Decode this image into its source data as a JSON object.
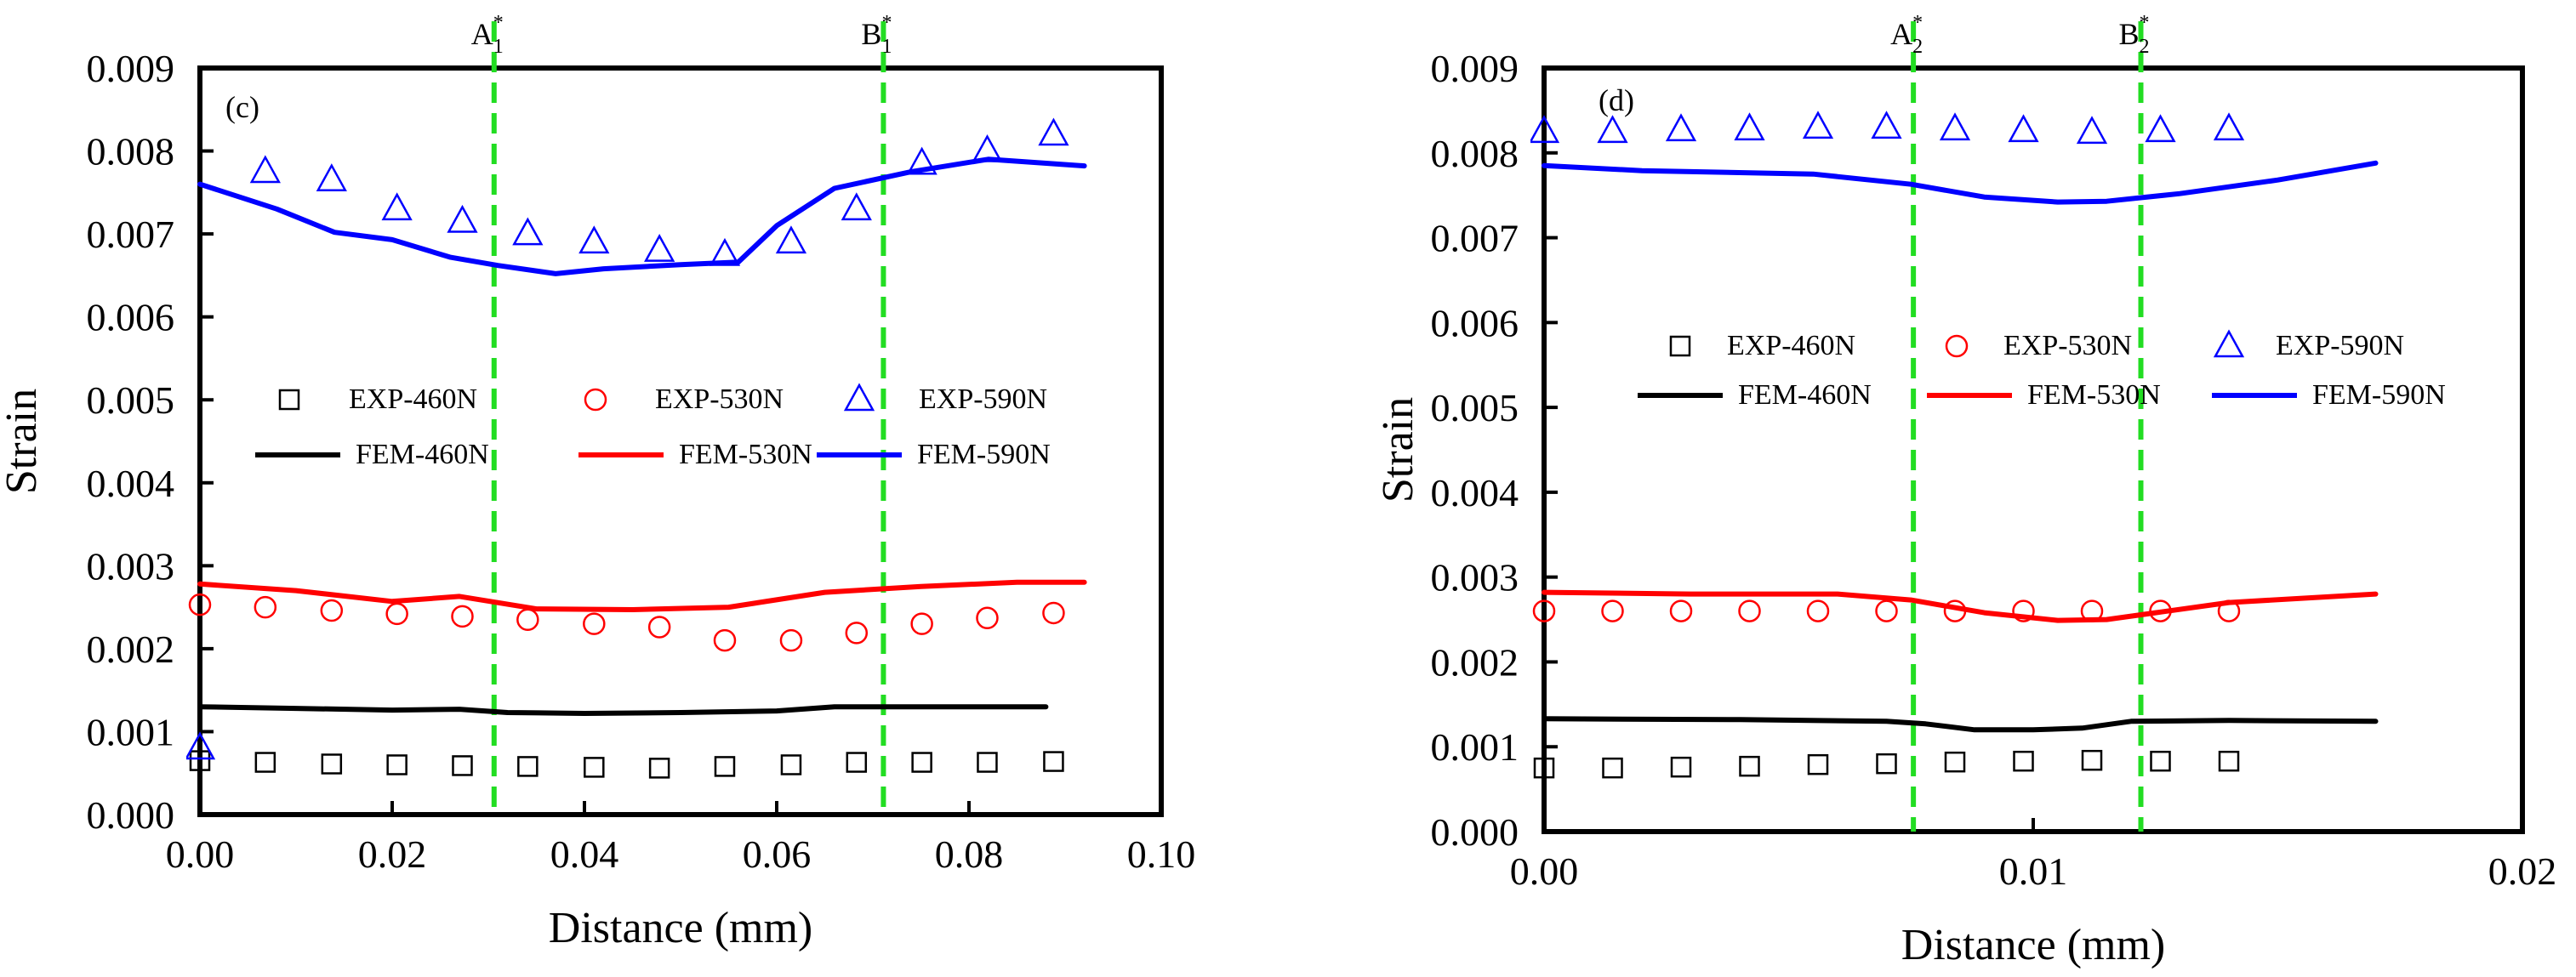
{
  "chart_data": [
    {
      "type": "scatter",
      "panel_label": "(c)",
      "xlabel": "Distance (mm)",
      "ylabel": "Strain",
      "xlim": [
        0,
        0.1
      ],
      "ylim": [
        0,
        0.009
      ],
      "x_ticks": [
        {
          "value": 0,
          "label": "0.00"
        },
        {
          "value": 0.02,
          "label": "0.02"
        },
        {
          "value": 0.04,
          "label": "0.04"
        },
        {
          "value": 0.06,
          "label": "0.06"
        },
        {
          "value": 0.08,
          "label": "0.08"
        },
        {
          "value": 0.1,
          "label": "0.10"
        }
      ],
      "y_ticks": [
        {
          "value": 0,
          "label": "0.000"
        },
        {
          "value": 0.001,
          "label": "0.001"
        },
        {
          "value": 0.002,
          "label": "0.002"
        },
        {
          "value": 0.003,
          "label": "0.003"
        },
        {
          "value": 0.004,
          "label": "0.004"
        },
        {
          "value": 0.005,
          "label": "0.005"
        },
        {
          "value": 0.006,
          "label": "0.006"
        },
        {
          "value": 0.007,
          "label": "0.007"
        },
        {
          "value": 0.008,
          "label": "0.008"
        },
        {
          "value": 0.009,
          "label": "0.009"
        }
      ],
      "vlines": [
        {
          "x": 0.0306,
          "base": "A",
          "sub": "1",
          "sup": "*"
        },
        {
          "x": 0.0711,
          "base": "B",
          "sub": "1",
          "sup": "*"
        }
      ],
      "scatter_series": [
        {
          "name": "EXP-460N",
          "marker": "square",
          "color": "#000000",
          "x": [
            0,
            0.0068,
            0.0137,
            0.0205,
            0.0273,
            0.0341,
            0.041,
            0.0478,
            0.0546,
            0.0615,
            0.0683,
            0.0751,
            0.0819,
            0.0888
          ],
          "y": [
            0.00065,
            0.00063,
            0.00061,
            0.0006,
            0.00059,
            0.00058,
            0.00057,
            0.00056,
            0.00058,
            0.0006,
            0.00063,
            0.00063,
            0.00063,
            0.00064
          ]
        },
        {
          "name": "EXP-530N",
          "marker": "circle",
          "color": "#ff0000",
          "x": [
            0,
            0.0068,
            0.0137,
            0.0205,
            0.0273,
            0.0341,
            0.041,
            0.0478,
            0.0546,
            0.0615,
            0.0683,
            0.0751,
            0.0819,
            0.0888
          ],
          "y": [
            0.00253,
            0.0025,
            0.00246,
            0.00242,
            0.00239,
            0.00235,
            0.0023,
            0.00226,
            0.0021,
            0.0021,
            0.00219,
            0.0023,
            0.00237,
            0.00243
          ]
        },
        {
          "name": "EXP-590N",
          "marker": "triangle",
          "color": "#0000ff",
          "x": [
            0,
            0.0068,
            0.0137,
            0.0205,
            0.0273,
            0.0341,
            0.041,
            0.0478,
            0.0546,
            0.0615,
            0.0683,
            0.0751,
            0.0819,
            0.0888
          ],
          "y": [
            0.0008,
            0.00775,
            0.00765,
            0.0073,
            0.00715,
            0.007,
            0.0069,
            0.0068,
            0.00675,
            0.0069,
            0.0073,
            0.00785,
            0.008,
            0.0082
          ]
        }
      ],
      "line_series": [
        {
          "name": "FEM-460N",
          "color": "#000000",
          "x": [
            0,
            0.01,
            0.02,
            0.027,
            0.032,
            0.04,
            0.05,
            0.06,
            0.066,
            0.075,
            0.088
          ],
          "y": [
            0.0013,
            0.00128,
            0.00126,
            0.00127,
            0.00123,
            0.00122,
            0.00123,
            0.00125,
            0.0013,
            0.0013,
            0.0013
          ]
        },
        {
          "name": "FEM-530N",
          "color": "#ff0000",
          "x": [
            0,
            0.01,
            0.02,
            0.027,
            0.035,
            0.045,
            0.055,
            0.065,
            0.075,
            0.085,
            0.092
          ],
          "y": [
            0.00278,
            0.0027,
            0.00257,
            0.00263,
            0.00248,
            0.00247,
            0.0025,
            0.00268,
            0.00275,
            0.0028,
            0.0028
          ]
        },
        {
          "name": "FEM-590N",
          "color": "#0000ff",
          "x": [
            0,
            0.008,
            0.014,
            0.02,
            0.026,
            0.031,
            0.037,
            0.042,
            0.05,
            0.056,
            0.06,
            0.066,
            0.074,
            0.082,
            0.092
          ],
          "y": [
            0.0076,
            0.0073,
            0.00702,
            0.00693,
            0.00672,
            0.00662,
            0.00652,
            0.00658,
            0.00663,
            0.00666,
            0.0071,
            0.00755,
            0.00775,
            0.0079,
            0.00782
          ]
        }
      ]
    },
    {
      "type": "scatter",
      "panel_label": "(d)",
      "xlabel": "Distance (mm)",
      "ylabel": "Strain",
      "xlim": [
        0,
        0.02
      ],
      "ylim": [
        0,
        0.009
      ],
      "x_ticks": [
        {
          "value": 0,
          "label": "0.00"
        },
        {
          "value": 0.01,
          "label": "0.01"
        },
        {
          "value": 0.02,
          "label": "0.02"
        }
      ],
      "y_ticks": [
        {
          "value": 0,
          "label": "0.000"
        },
        {
          "value": 0.001,
          "label": "0.001"
        },
        {
          "value": 0.002,
          "label": "0.002"
        },
        {
          "value": 0.003,
          "label": "0.003"
        },
        {
          "value": 0.004,
          "label": "0.004"
        },
        {
          "value": 0.005,
          "label": "0.005"
        },
        {
          "value": 0.006,
          "label": "0.006"
        },
        {
          "value": 0.007,
          "label": "0.007"
        },
        {
          "value": 0.008,
          "label": "0.008"
        },
        {
          "value": 0.009,
          "label": "0.009"
        }
      ],
      "vlines": [
        {
          "x": 0.00755,
          "base": "A",
          "sub": "2",
          "sup": "*"
        },
        {
          "x": 0.0122,
          "base": "B",
          "sub": "2",
          "sup": "*"
        }
      ],
      "scatter_series": [
        {
          "name": "EXP-460N",
          "marker": "square",
          "color": "#000000",
          "x": [
            0,
            0.0014,
            0.0028,
            0.0042,
            0.0056,
            0.007,
            0.0084,
            0.0098,
            0.0112,
            0.0126,
            0.014
          ],
          "y": [
            0.00075,
            0.00075,
            0.00076,
            0.00077,
            0.00079,
            0.0008,
            0.00082,
            0.00083,
            0.00084,
            0.00083,
            0.00083
          ]
        },
        {
          "name": "EXP-530N",
          "marker": "circle",
          "color": "#ff0000",
          "x": [
            0,
            0.0014,
            0.0028,
            0.0042,
            0.0056,
            0.007,
            0.0084,
            0.0098,
            0.0112,
            0.0126,
            0.014
          ],
          "y": [
            0.0026,
            0.0026,
            0.0026,
            0.0026,
            0.0026,
            0.0026,
            0.0026,
            0.0026,
            0.0026,
            0.0026,
            0.0026
          ]
        },
        {
          "name": "EXP-590N",
          "marker": "triangle",
          "color": "#0000ff",
          "x": [
            0,
            0.0014,
            0.0028,
            0.0042,
            0.0056,
            0.007,
            0.0084,
            0.0098,
            0.0112,
            0.0126,
            0.014
          ],
          "y": [
            0.00825,
            0.00825,
            0.00827,
            0.00828,
            0.0083,
            0.0083,
            0.00828,
            0.00826,
            0.00824,
            0.00826,
            0.00828
          ]
        }
      ],
      "line_series": [
        {
          "name": "FEM-460N",
          "color": "#000000",
          "x": [
            0,
            0.004,
            0.007,
            0.0078,
            0.0088,
            0.01,
            0.011,
            0.012,
            0.014,
            0.017
          ],
          "y": [
            0.00133,
            0.00132,
            0.0013,
            0.00127,
            0.0012,
            0.0012,
            0.00122,
            0.0013,
            0.00131,
            0.0013
          ]
        },
        {
          "name": "FEM-530N",
          "color": "#ff0000",
          "x": [
            0,
            0.003,
            0.006,
            0.0075,
            0.009,
            0.0105,
            0.0115,
            0.0125,
            0.014,
            0.017
          ],
          "y": [
            0.00282,
            0.0028,
            0.0028,
            0.00273,
            0.00258,
            0.00249,
            0.0025,
            0.00258,
            0.0027,
            0.0028
          ]
        },
        {
          "name": "FEM-590N",
          "color": "#0000ff",
          "x": [
            0,
            0.002,
            0.0055,
            0.0075,
            0.009,
            0.0105,
            0.0115,
            0.013,
            0.015,
            0.017
          ],
          "y": [
            0.00785,
            0.00779,
            0.00775,
            0.00763,
            0.00748,
            0.00742,
            0.00743,
            0.00752,
            0.00768,
            0.00788
          ]
        }
      ]
    }
  ]
}
